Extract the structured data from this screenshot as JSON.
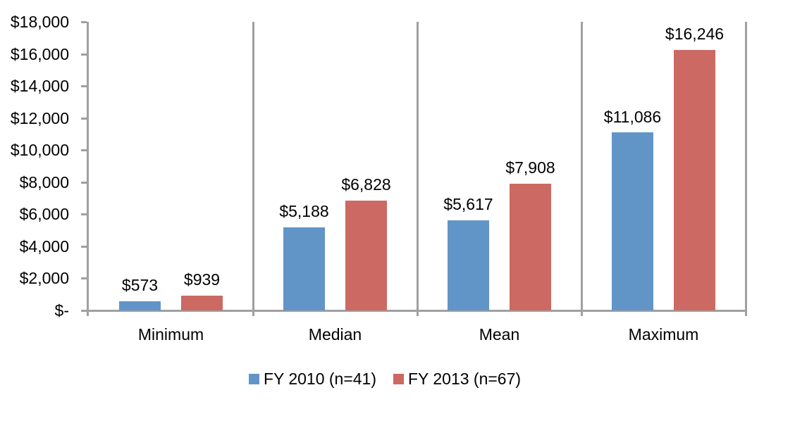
{
  "chart_data": {
    "type": "bar",
    "title": "",
    "categories": [
      "Minimum",
      "Median",
      "Mean",
      "Maximum"
    ],
    "series": [
      {
        "name": "FY 2010 (n=41)",
        "color": "#6195C8",
        "values": [
          573,
          5188,
          5617,
          11086
        ],
        "labels": [
          "$573",
          "$5,188",
          "$5,617",
          "$11,086"
        ]
      },
      {
        "name": "FY 2013 (n=67)",
        "color": "#CB6962",
        "values": [
          939,
          6828,
          7908,
          16246
        ],
        "labels": [
          "$939",
          "$6,828",
          "$7,908",
          "$16,246"
        ]
      }
    ],
    "y_axis": {
      "min": 0,
      "max": 18000,
      "step": 2000,
      "ticks": [
        {
          "value": 0,
          "label": "$-"
        },
        {
          "value": 2000,
          "label": "$2,000"
        },
        {
          "value": 4000,
          "label": "$4,000"
        },
        {
          "value": 6000,
          "label": "$6,000"
        },
        {
          "value": 8000,
          "label": "$8,000"
        },
        {
          "value": 10000,
          "label": "$10,000"
        },
        {
          "value": 12000,
          "label": "$12,000"
        },
        {
          "value": 14000,
          "label": "$14,000"
        },
        {
          "value": 16000,
          "label": "$16,000"
        },
        {
          "value": 18000,
          "label": "$18,000"
        }
      ]
    },
    "axis_color": "#A0A0A0",
    "text_color": "#000000",
    "grid": false,
    "legend_position": "bottom",
    "data_labels": true
  }
}
